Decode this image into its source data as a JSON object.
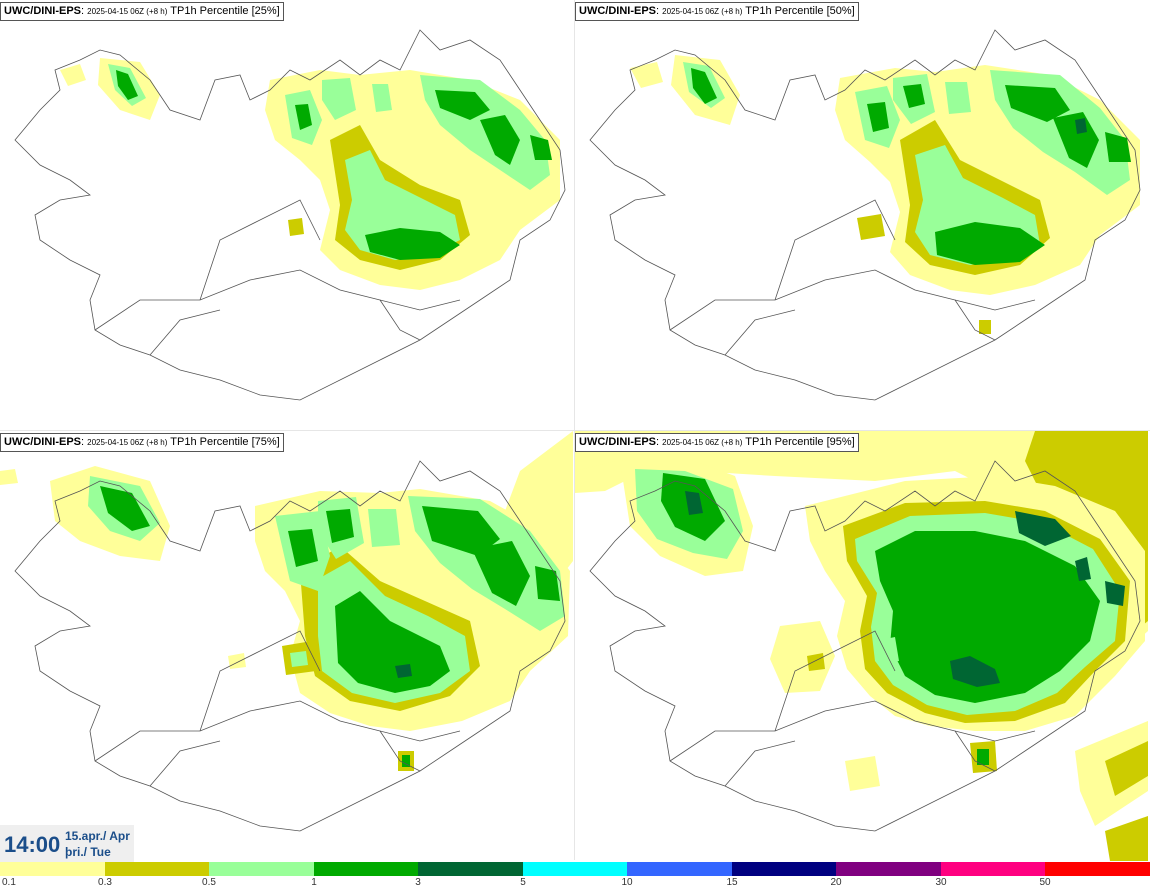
{
  "panels": [
    {
      "model": "UWC/DINI-EPS",
      "run": "2025-04-15 06Z (+8 h)",
      "label": "TP1h Percentile [25%]"
    },
    {
      "model": "UWC/DINI-EPS",
      "run": "2025-04-15 06Z (+8 h)",
      "label": "TP1h Percentile [50%]"
    },
    {
      "model": "UWC/DINI-EPS",
      "run": "2025-04-15 06Z (+8 h)",
      "label": "TP1h Percentile [75%]"
    },
    {
      "model": "UWC/DINI-EPS",
      "run": "2025-04-15 06Z (+8 h)",
      "label": "TP1h Percentile [95%]"
    }
  ],
  "time": {
    "clock": "14:00",
    "date_line1": "15.apr./ Apr",
    "date_line2": "þri./ Tue"
  },
  "legend": {
    "ticks": [
      "0.1",
      "0.3",
      "0.5",
      "1",
      "3",
      "5",
      "10",
      "15",
      "20",
      "30",
      "50"
    ],
    "colors": [
      "#ffff99",
      "#cccc00",
      "#99ff99",
      "#00aa00",
      "#006633",
      "#00ffff",
      "#3366ff",
      "#000080",
      "#800080",
      "#ff0080",
      "#ff0000"
    ]
  },
  "colors": {
    "light_yellow": "#ffff99",
    "olive": "#cccc00",
    "light_green": "#99ff99",
    "green": "#00aa00",
    "dark_green": "#006633",
    "border": "#555555",
    "time_text": "#1b4e8a"
  }
}
